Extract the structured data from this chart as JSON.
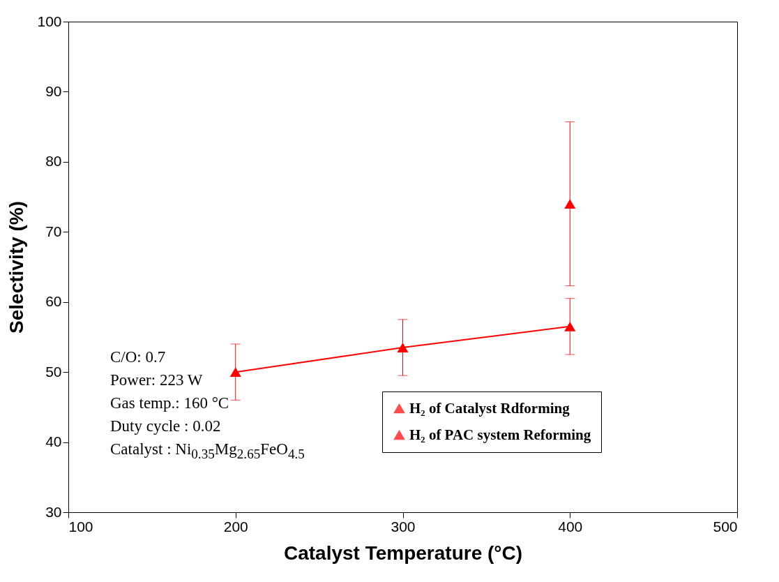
{
  "chart_data": {
    "type": "line",
    "xlabel": "Catalyst Temperature (°C)",
    "ylabel": "Selectivity (%)",
    "xlim": [
      100,
      500
    ],
    "xticks": [
      100,
      200,
      300,
      400,
      500
    ],
    "ylim": [
      30,
      100
    ],
    "yticks": [
      30,
      40,
      50,
      60,
      70,
      80,
      90,
      100
    ],
    "grid": false,
    "legend": "bottom right",
    "marker": "triangle",
    "line_style": "solid",
    "series": [
      {
        "name": "H₂ of Catalyst Rdforming",
        "color": "#ff0000",
        "x": [
          200,
          300,
          400
        ],
        "values": [
          50,
          53.5,
          56.5
        ],
        "errors": [
          4,
          4,
          4
        ]
      },
      {
        "name": "H₂ of PAC system Reforming",
        "color": "#ff0000",
        "x": [
          400
        ],
        "values": [
          74
        ],
        "errors": [
          11.7
        ]
      }
    ],
    "annotations": [
      "C/O: 0.7",
      "Power: 223 W",
      "Gas temp.: 160 °C",
      "Duty cycle : 0.02",
      "Catalyst : Ni$_{0.35}$Mg$_{2.65}$FeO$_{4.5}$"
    ]
  }
}
